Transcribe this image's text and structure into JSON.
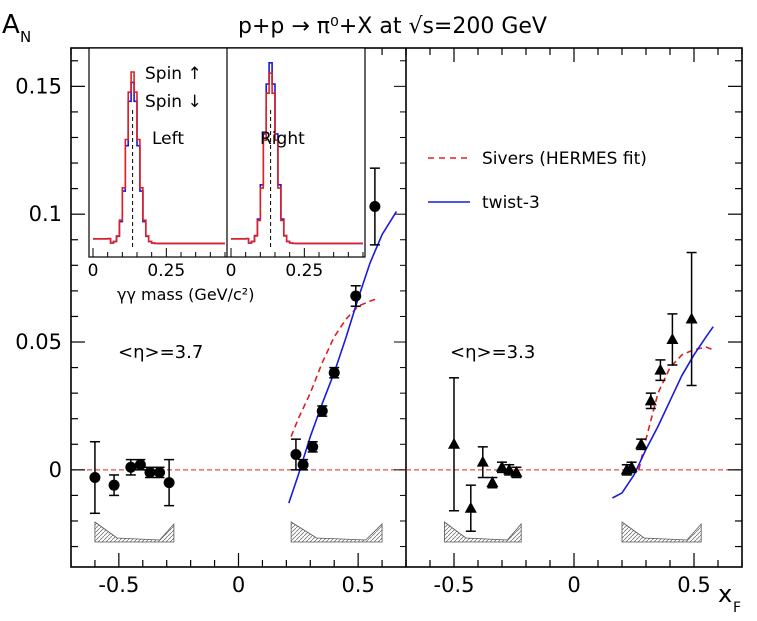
{
  "chart_data": {
    "type": "scatter",
    "title": "p+p → π⁰+X at √s=200 GeV",
    "ylabel": "A_N",
    "xlabel": "x_F",
    "ylim": [
      -0.038,
      0.165
    ],
    "y_ticks": [
      "0",
      "0.05",
      "0.1",
      "0.15"
    ],
    "x_tick_labels": [
      "-0.5",
      "0",
      "0.5"
    ],
    "legend": [
      {
        "label": "Sivers (HERMES fit)",
        "color": "#e02020",
        "style": "dashed"
      },
      {
        "label": "twist-3",
        "color": "#1a1ae0",
        "style": "solid"
      }
    ],
    "panels": [
      {
        "id": "left",
        "xlim": [
          -0.7,
          0.7
        ],
        "eta_label": "<η>=3.7",
        "marker": "circle",
        "points": [
          {
            "x": -0.6,
            "y": -0.003,
            "err": 0.014
          },
          {
            "x": -0.52,
            "y": -0.006,
            "err": 0.004
          },
          {
            "x": -0.45,
            "y": 0.001,
            "err": 0.003
          },
          {
            "x": -0.41,
            "y": 0.002,
            "err": 0.002
          },
          {
            "x": -0.37,
            "y": -0.001,
            "err": 0.002
          },
          {
            "x": -0.33,
            "y": -0.001,
            "err": 0.002
          },
          {
            "x": -0.29,
            "y": -0.005,
            "err": 0.009
          },
          {
            "x": 0.24,
            "y": 0.006,
            "err": 0.006
          },
          {
            "x": 0.27,
            "y": 0.002,
            "err": 0.002
          },
          {
            "x": 0.31,
            "y": 0.009,
            "err": 0.002
          },
          {
            "x": 0.35,
            "y": 0.023,
            "err": 0.002
          },
          {
            "x": 0.4,
            "y": 0.038,
            "err": 0.002
          },
          {
            "x": 0.49,
            "y": 0.068,
            "err": 0.004
          },
          {
            "x": 0.57,
            "y": 0.103,
            "err": 0.015
          }
        ],
        "sivers_curve": [
          [
            0.22,
            0.013
          ],
          [
            0.25,
            0.02
          ],
          [
            0.3,
            0.03
          ],
          [
            0.35,
            0.042
          ],
          [
            0.4,
            0.052
          ],
          [
            0.45,
            0.059
          ],
          [
            0.5,
            0.064
          ],
          [
            0.55,
            0.066
          ],
          [
            0.58,
            0.067
          ]
        ],
        "twist3_curve": [
          [
            0.21,
            -0.013
          ],
          [
            0.25,
            -0.002
          ],
          [
            0.3,
            0.013
          ],
          [
            0.35,
            0.026
          ],
          [
            0.4,
            0.038
          ],
          [
            0.45,
            0.052
          ],
          [
            0.5,
            0.067
          ],
          [
            0.55,
            0.081
          ],
          [
            0.6,
            0.092
          ],
          [
            0.66,
            0.101
          ]
        ]
      },
      {
        "id": "right",
        "xlim": [
          -0.7,
          0.7
        ],
        "eta_label": "<η>=3.3",
        "marker": "triangle",
        "points": [
          {
            "x": -0.5,
            "y": 0.01,
            "err": 0.026
          },
          {
            "x": -0.43,
            "y": -0.015,
            "err": 0.009
          },
          {
            "x": -0.38,
            "y": 0.003,
            "err": 0.006
          },
          {
            "x": -0.34,
            "y": -0.005,
            "err": 0.002
          },
          {
            "x": -0.3,
            "y": 0.001,
            "err": 0.002
          },
          {
            "x": -0.27,
            "y": 0.0,
            "err": 0.002
          },
          {
            "x": -0.24,
            "y": -0.001,
            "err": 0.002
          },
          {
            "x": 0.22,
            "y": 0.0,
            "err": 0.002
          },
          {
            "x": 0.24,
            "y": 0.001,
            "err": 0.002
          },
          {
            "x": 0.28,
            "y": 0.01,
            "err": 0.002
          },
          {
            "x": 0.32,
            "y": 0.027,
            "err": 0.003
          },
          {
            "x": 0.36,
            "y": 0.039,
            "err": 0.004
          },
          {
            "x": 0.41,
            "y": 0.051,
            "err": 0.01
          },
          {
            "x": 0.49,
            "y": 0.059,
            "err": 0.026
          }
        ],
        "sivers_curve": [
          [
            0.27,
            0.0
          ],
          [
            0.3,
            0.012
          ],
          [
            0.35,
            0.03
          ],
          [
            0.4,
            0.04
          ],
          [
            0.45,
            0.045
          ],
          [
            0.5,
            0.047
          ],
          [
            0.55,
            0.048
          ],
          [
            0.58,
            0.047
          ]
        ],
        "twist3_curve": [
          [
            0.16,
            -0.011
          ],
          [
            0.2,
            -0.009
          ],
          [
            0.25,
            -0.002
          ],
          [
            0.3,
            0.008
          ],
          [
            0.35,
            0.017
          ],
          [
            0.4,
            0.027
          ],
          [
            0.45,
            0.037
          ],
          [
            0.5,
            0.045
          ],
          [
            0.55,
            0.052
          ],
          [
            0.58,
            0.056
          ]
        ]
      }
    ],
    "inset": {
      "xlabel": "γγ mass (GeV/c²)",
      "x_tick_labels": [
        "0",
        "0.25"
      ],
      "legend": [
        {
          "label": "Spin ↑",
          "color": "#e02020"
        },
        {
          "label": "Spin ↓",
          "color": "#1a1ae0"
        }
      ],
      "sub_panels": [
        {
          "label": "Left",
          "up_peak": 0.149,
          "down_peak": 0.14
        },
        {
          "label": "Right",
          "up_peak": 0.148,
          "down_peak": 0.157
        }
      ]
    }
  }
}
